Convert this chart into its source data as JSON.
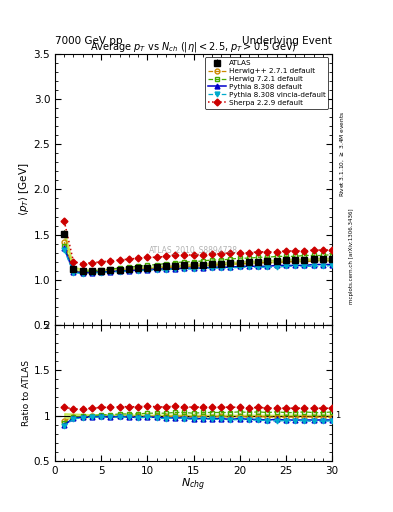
{
  "title_left": "7000 GeV pp",
  "title_right": "Underlying Event",
  "plot_title": "Average $p_T$ vs $N_{ch}$ ($|\\eta| < 2.5$, $p_T > 0.5$ GeV)",
  "ylabel_main": "$\\langle p_T \\rangle$ [GeV]",
  "ylabel_ratio": "Ratio to ATLAS",
  "xlabel": "$N_{chg}$",
  "right_label_top": "Rivet 3.1.10, $\\geq$ 3.4M events",
  "right_label_bottom": "mcplots.cern.ch [arXiv:1306.3436]",
  "watermark": "ATLAS_2010_S8894728",
  "ylim_main": [
    0.5,
    3.5
  ],
  "ylim_ratio": [
    0.5,
    2.0
  ],
  "xlim": [
    0,
    30
  ],
  "yticks_main": [
    0.5,
    1.0,
    1.5,
    2.0,
    2.5,
    3.0,
    3.5
  ],
  "yticks_ratio": [
    0.5,
    1.0,
    1.5,
    2.0
  ],
  "atlas_x": [
    1,
    2,
    3,
    4,
    5,
    6,
    7,
    8,
    9,
    10,
    11,
    12,
    13,
    14,
    15,
    16,
    17,
    18,
    19,
    20,
    21,
    22,
    23,
    24,
    25,
    26,
    27,
    28,
    29,
    30
  ],
  "atlas_y": [
    1.51,
    1.12,
    1.1,
    1.1,
    1.1,
    1.11,
    1.11,
    1.12,
    1.13,
    1.13,
    1.14,
    1.15,
    1.15,
    1.16,
    1.17,
    1.17,
    1.18,
    1.18,
    1.19,
    1.19,
    1.2,
    1.2,
    1.21,
    1.21,
    1.22,
    1.22,
    1.22,
    1.23,
    1.23,
    1.23
  ],
  "atlas_yerr": [
    0.04,
    0.025,
    0.02,
    0.015,
    0.012,
    0.012,
    0.012,
    0.012,
    0.012,
    0.012,
    0.012,
    0.012,
    0.012,
    0.012,
    0.012,
    0.012,
    0.012,
    0.012,
    0.012,
    0.012,
    0.012,
    0.012,
    0.012,
    0.012,
    0.012,
    0.012,
    0.012,
    0.012,
    0.012,
    0.012
  ],
  "herwig271_x": [
    1,
    2,
    3,
    4,
    5,
    6,
    7,
    8,
    9,
    10,
    11,
    12,
    13,
    14,
    15,
    16,
    17,
    18,
    19,
    20,
    21,
    22,
    23,
    24,
    25,
    26,
    27,
    28,
    29,
    30
  ],
  "herwig271_y": [
    1.42,
    1.1,
    1.08,
    1.09,
    1.09,
    1.1,
    1.1,
    1.11,
    1.12,
    1.12,
    1.13,
    1.14,
    1.14,
    1.15,
    1.15,
    1.16,
    1.16,
    1.17,
    1.17,
    1.18,
    1.18,
    1.19,
    1.19,
    1.19,
    1.2,
    1.2,
    1.2,
    1.21,
    1.21,
    1.21
  ],
  "herwig721_x": [
    1,
    2,
    3,
    4,
    5,
    6,
    7,
    8,
    9,
    10,
    11,
    12,
    13,
    14,
    15,
    16,
    17,
    18,
    19,
    20,
    21,
    22,
    23,
    24,
    25,
    26,
    27,
    28,
    29,
    30
  ],
  "herwig721_y": [
    1.38,
    1.1,
    1.09,
    1.1,
    1.11,
    1.12,
    1.13,
    1.14,
    1.15,
    1.16,
    1.17,
    1.18,
    1.19,
    1.2,
    1.2,
    1.21,
    1.22,
    1.22,
    1.23,
    1.24,
    1.24,
    1.25,
    1.25,
    1.26,
    1.26,
    1.26,
    1.27,
    1.27,
    1.27,
    1.28
  ],
  "pythia308_x": [
    1,
    2,
    3,
    4,
    5,
    6,
    7,
    8,
    9,
    10,
    11,
    12,
    13,
    14,
    15,
    16,
    17,
    18,
    19,
    20,
    21,
    22,
    23,
    24,
    25,
    26,
    27,
    28,
    29,
    30
  ],
  "pythia308_y": [
    1.35,
    1.09,
    1.08,
    1.08,
    1.09,
    1.09,
    1.1,
    1.1,
    1.11,
    1.11,
    1.12,
    1.12,
    1.12,
    1.13,
    1.13,
    1.13,
    1.14,
    1.14,
    1.14,
    1.15,
    1.15,
    1.15,
    1.15,
    1.16,
    1.16,
    1.16,
    1.16,
    1.17,
    1.17,
    1.17
  ],
  "pythia308v_x": [
    1,
    2,
    3,
    4,
    5,
    6,
    7,
    8,
    9,
    10,
    11,
    12,
    13,
    14,
    15,
    16,
    17,
    18,
    19,
    20,
    21,
    22,
    23,
    24,
    25,
    26,
    27,
    28,
    29,
    30
  ],
  "pythia308v_y": [
    1.33,
    1.08,
    1.07,
    1.08,
    1.08,
    1.09,
    1.09,
    1.1,
    1.1,
    1.11,
    1.11,
    1.11,
    1.12,
    1.12,
    1.12,
    1.13,
    1.13,
    1.13,
    1.13,
    1.14,
    1.14,
    1.14,
    1.14,
    1.14,
    1.15,
    1.15,
    1.15,
    1.15,
    1.15,
    1.16
  ],
  "sherpa_x": [
    1,
    2,
    3,
    4,
    5,
    6,
    7,
    8,
    9,
    10,
    11,
    12,
    13,
    14,
    15,
    16,
    17,
    18,
    19,
    20,
    21,
    22,
    23,
    24,
    25,
    26,
    27,
    28,
    29,
    30
  ],
  "sherpa_y": [
    1.65,
    1.2,
    1.18,
    1.19,
    1.2,
    1.21,
    1.22,
    1.23,
    1.24,
    1.25,
    1.25,
    1.26,
    1.27,
    1.27,
    1.28,
    1.28,
    1.29,
    1.29,
    1.3,
    1.3,
    1.3,
    1.31,
    1.31,
    1.31,
    1.32,
    1.32,
    1.32,
    1.33,
    1.33,
    1.33
  ],
  "atlas_color": "#000000",
  "herwig271_color": "#cc8800",
  "herwig721_color": "#44aa00",
  "pythia308_color": "#0000cc",
  "pythia308v_color": "#00aacc",
  "sherpa_color": "#cc0000",
  "atlas_band_color": "#aadd00",
  "atlas_band_alpha": 0.5
}
